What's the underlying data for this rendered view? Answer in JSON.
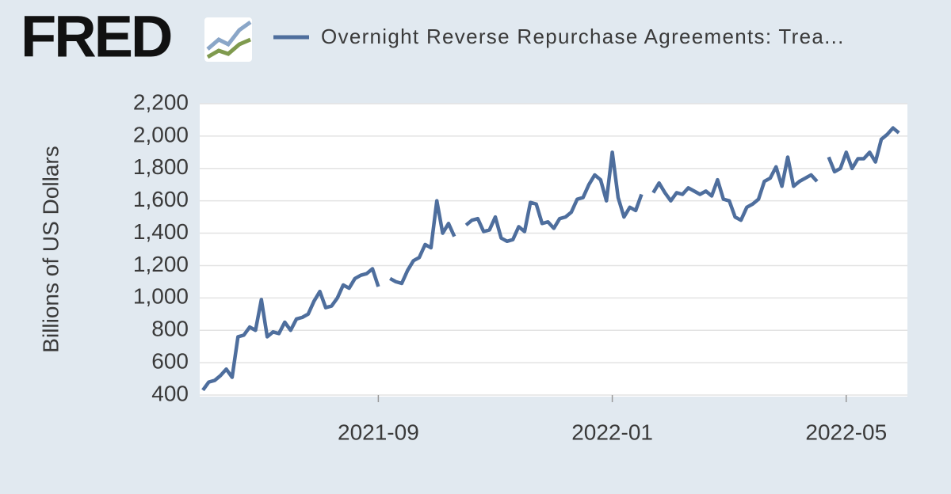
{
  "brand": "FRED",
  "chart_data": {
    "type": "line",
    "y_label": "Billions of US Dollars",
    "ylim": [
      400,
      2200
    ],
    "yticks": [
      400,
      600,
      800,
      {
        "value": 1000,
        "label": "1,000"
      },
      {
        "value": 1200,
        "label": "1,200"
      },
      {
        "value": 1400,
        "label": "1,400"
      },
      {
        "value": 1600,
        "label": "1,600"
      },
      {
        "value": 1800,
        "label": "1,800"
      },
      {
        "value": 2000,
        "label": "2,000"
      },
      {
        "value": 2200,
        "label": "2,200"
      }
    ],
    "grid": true,
    "categories": [
      null,
      null,
      null,
      null,
      null,
      null,
      null,
      null,
      null,
      null,
      null,
      null,
      null,
      null,
      null,
      null,
      null,
      null,
      null,
      null,
      null,
      null,
      null,
      null,
      null,
      null,
      null,
      null,
      null,
      null,
      "2021-09",
      null,
      null,
      null,
      null,
      null,
      null,
      null,
      null,
      null,
      null,
      null,
      null,
      null,
      null,
      null,
      null,
      null,
      null,
      null,
      null,
      null,
      null,
      null,
      null,
      null,
      null,
      null,
      null,
      null,
      null,
      null,
      null,
      null,
      null,
      null,
      null,
      null,
      null,
      null,
      "2022-01",
      null,
      null,
      null,
      null,
      null,
      null,
      null,
      null,
      null,
      null,
      null,
      null,
      null,
      null,
      null,
      null,
      null,
      null,
      null,
      null,
      null,
      null,
      null,
      null,
      null,
      null,
      null,
      null,
      null,
      null,
      null,
      null,
      null,
      null,
      null,
      null,
      null,
      null,
      null,
      "2022-05",
      null,
      null,
      null,
      null,
      null,
      null,
      null,
      null,
      null
    ],
    "series": [
      {
        "name": "Overnight Reverse Repurchase Agreements: Trea...",
        "color": "#4e6e9d",
        "values": [
          430,
          480,
          490,
          520,
          560,
          510,
          760,
          770,
          820,
          800,
          990,
          760,
          790,
          780,
          850,
          800,
          870,
          880,
          900,
          980,
          1040,
          940,
          950,
          1000,
          1080,
          1060,
          1120,
          1140,
          1150,
          1180,
          1070,
          null,
          1120,
          1100,
          1090,
          1170,
          1230,
          1250,
          1330,
          1310,
          1600,
          1400,
          1460,
          1380,
          null,
          1450,
          1480,
          1490,
          1410,
          1420,
          1500,
          1370,
          1350,
          1360,
          1440,
          1410,
          1590,
          1580,
          1460,
          1470,
          1430,
          1490,
          1500,
          1530,
          1610,
          1620,
          1700,
          1760,
          1730,
          1600,
          1900,
          1620,
          1500,
          1560,
          1540,
          1640,
          null,
          1650,
          1710,
          1650,
          1600,
          1650,
          1640,
          1680,
          1660,
          1640,
          1660,
          1630,
          1730,
          1610,
          1600,
          1500,
          1480,
          1560,
          1580,
          1610,
          1720,
          1740,
          1810,
          1690,
          1870,
          1690,
          1720,
          1740,
          1760,
          1720,
          null,
          1870,
          1780,
          1800,
          1900,
          1800,
          1860,
          1860,
          1900,
          1840,
          1980,
          2010,
          2050,
          2020
        ]
      }
    ]
  }
}
